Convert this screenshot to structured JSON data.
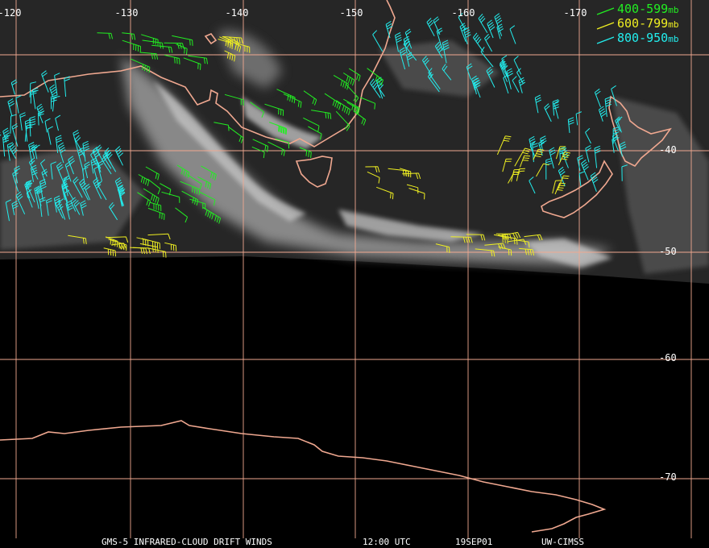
{
  "map": {
    "longitude_labels": [
      "-120",
      "-130",
      "-140",
      "-150",
      "-160",
      "-170"
    ],
    "latitude_labels": [
      "-40",
      "-50",
      "-60",
      "-70"
    ],
    "legend": [
      {
        "range": "400-599",
        "unit": "mb",
        "color": "#22ee22"
      },
      {
        "range": "600-799",
        "unit": "mb",
        "color": "#eeee22"
      },
      {
        "range": "800-950",
        "unit": "mb",
        "color": "#22eeee"
      }
    ],
    "footer": {
      "product": "GMS-5 INFRARED-CLOUD DRIFT WINDS",
      "time": "12:00 UTC",
      "date": "19SEP01",
      "source": "UW-CIMSS"
    },
    "colors": {
      "grid": "#f0a890",
      "coastline": "#f0a890",
      "background": "#000000"
    }
  }
}
